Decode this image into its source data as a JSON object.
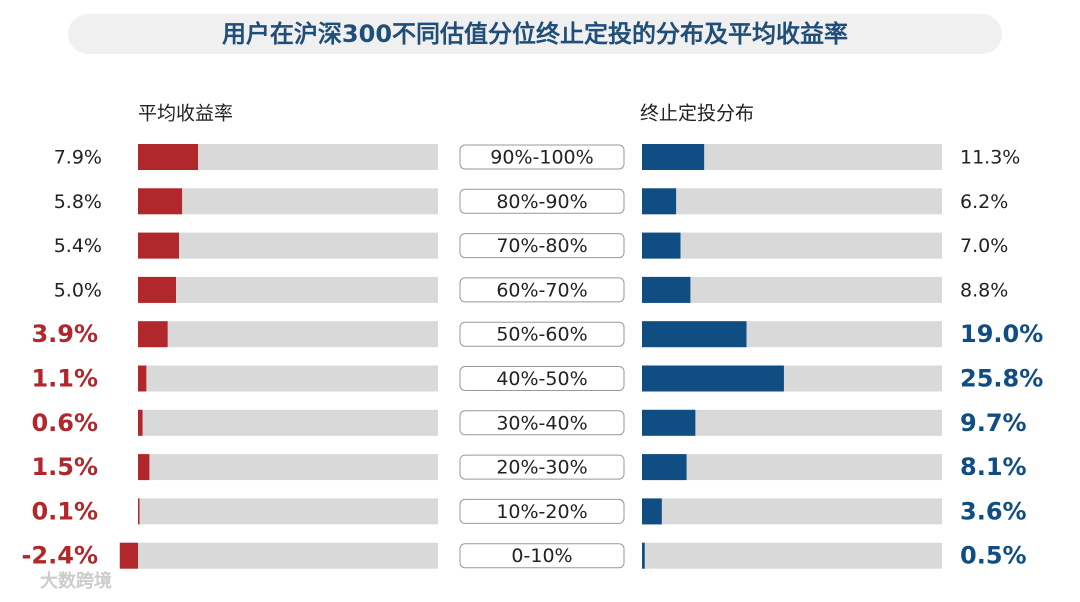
{
  "chart_data": {
    "type": "bar",
    "orientation": "horizontal",
    "title": "用户在沪深300不同估值分位终止定投的分布及平均收益率",
    "categories": [
      "90%-100%",
      "80%-90%",
      "70%-80%",
      "60%-70%",
      "50%-60%",
      "40%-50%",
      "30%-40%",
      "20%-30%",
      "10%-20%",
      "0-10%"
    ],
    "series": [
      {
        "name": "平均收益率",
        "color": "#b0282b",
        "values": [
          7.9,
          5.8,
          5.4,
          5.0,
          3.9,
          1.1,
          0.6,
          1.5,
          0.1,
          -2.4
        ],
        "value_labels": [
          "7.9%",
          "5.8%",
          "5.4%",
          "5.0%",
          "3.9%",
          "1.1%",
          "0.6%",
          "1.5%",
          "0.1%",
          "-2.4%"
        ]
      },
      {
        "name": "终止定投分布",
        "color": "#0f4d82",
        "values": [
          11.3,
          6.2,
          7.0,
          8.8,
          19.0,
          25.8,
          9.7,
          8.1,
          3.6,
          0.5
        ],
        "value_labels": [
          "11.3%",
          "6.2%",
          "7.0%",
          "8.8%",
          "19.0%",
          "25.8%",
          "9.7%",
          "8.1%",
          "3.6%",
          "0.5%"
        ]
      }
    ],
    "watermark": "大数跨境"
  }
}
